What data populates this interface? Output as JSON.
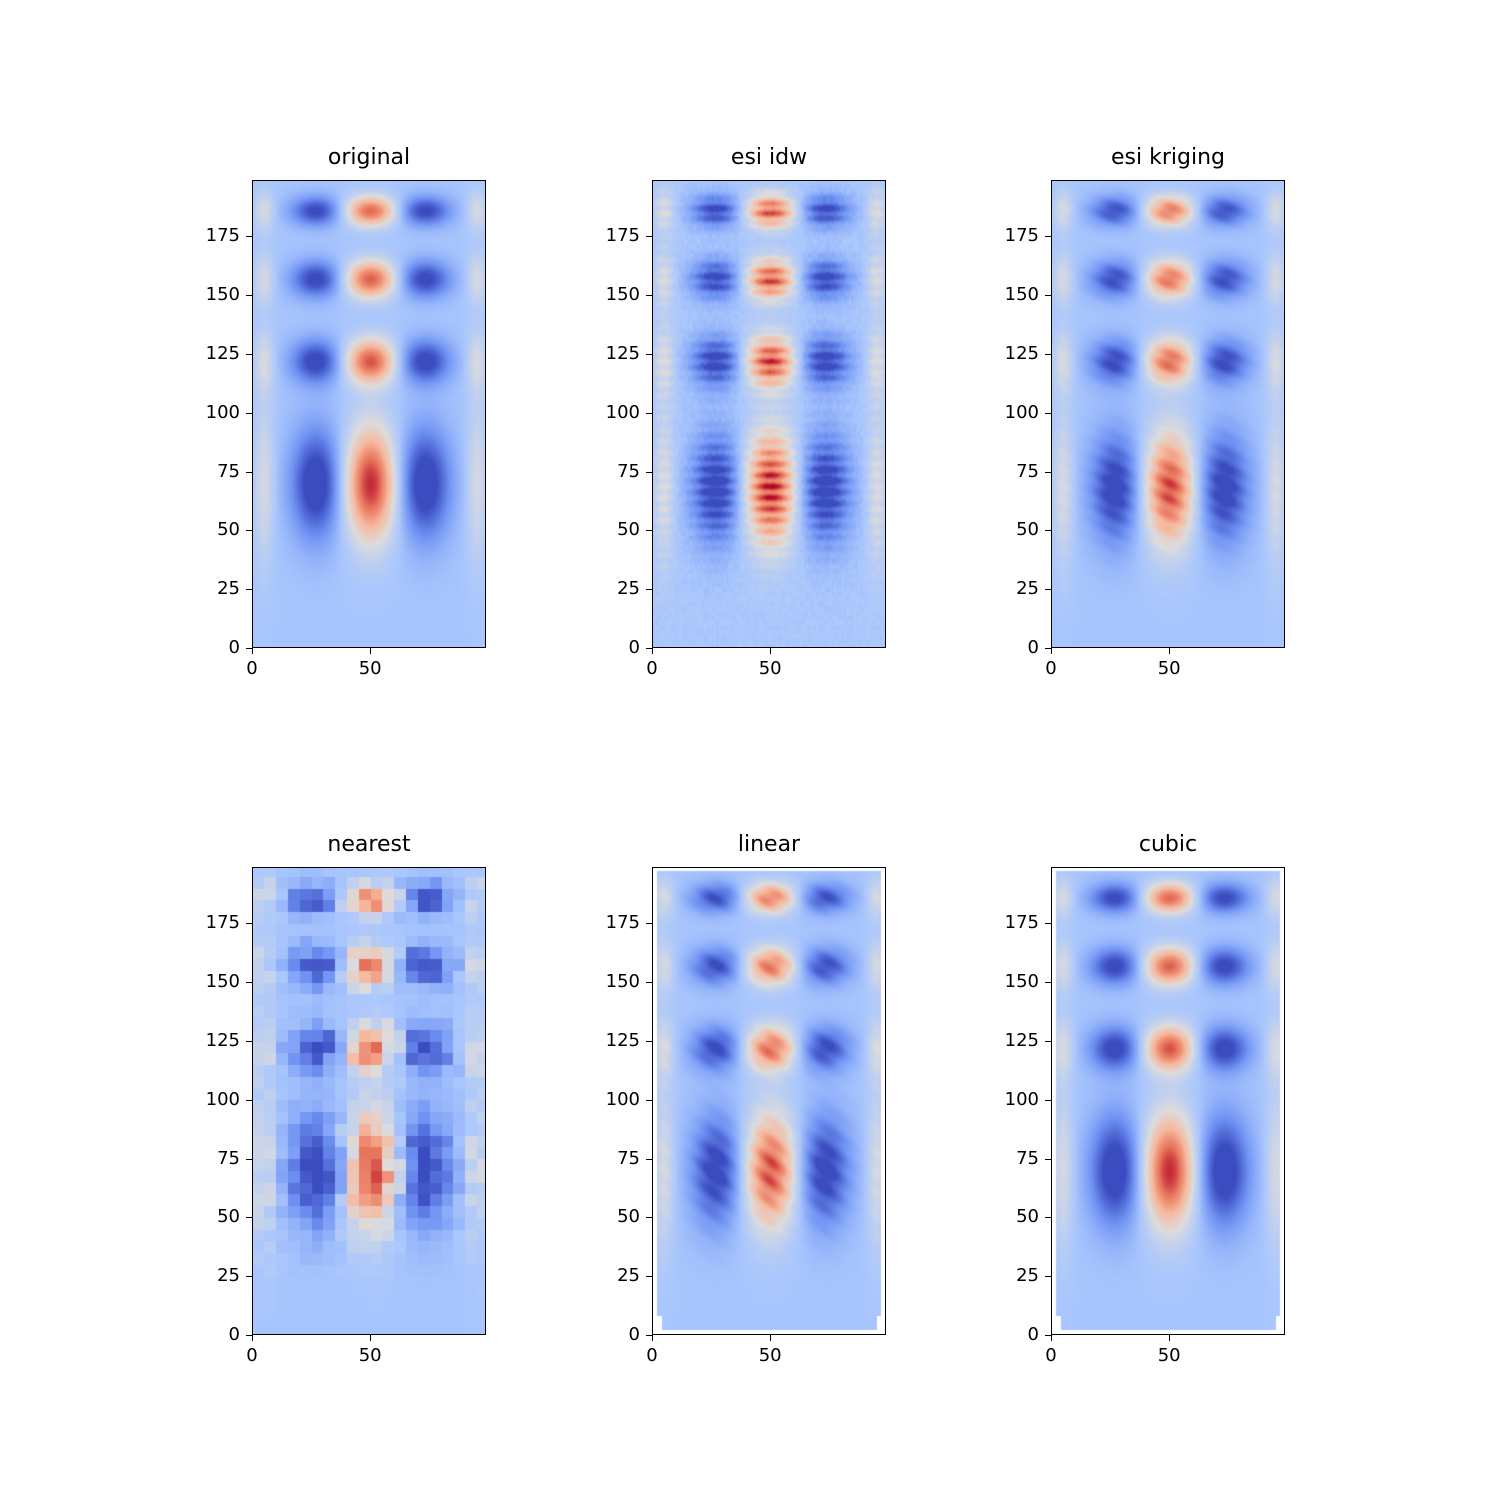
{
  "colormap": "coolwarm",
  "colormap_stops": [
    "#3b4cc0",
    "#6f92f3",
    "#aac7fd",
    "#dddcdc",
    "#f7b89c",
    "#e7745b",
    "#b40426"
  ],
  "chart_data": [
    {
      "type": "heatmap",
      "title": "original",
      "method": "original",
      "xlim": [
        0,
        99
      ],
      "ylim": [
        0,
        199
      ],
      "xticks": [
        "0",
        "50"
      ],
      "yticks": [
        "0",
        "25",
        "50",
        "75",
        "100",
        "125",
        "150",
        "175"
      ],
      "pattern": {
        "columns_x": [
          27,
          50,
          73
        ],
        "column_signs": [
          -1,
          1,
          -1
        ],
        "row_blobs": [
          {
            "y_center": 70,
            "y_span": 30
          },
          {
            "y_center": 122,
            "y_span": 12
          },
          {
            "y_center": 157,
            "y_span": 10
          },
          {
            "y_center": 186,
            "y_span": 8
          }
        ],
        "amplitude": 1.0,
        "background": -0.35
      }
    },
    {
      "type": "heatmap",
      "title": "esi idw",
      "method": "esi_idw",
      "xlim": [
        0,
        99
      ],
      "ylim": [
        0,
        199
      ],
      "xticks": [
        "0",
        "50"
      ],
      "yticks": [
        "0",
        "25",
        "50",
        "75",
        "100",
        "125",
        "150",
        "175"
      ],
      "pattern": {
        "columns_x": [
          27,
          50,
          73
        ],
        "column_signs": [
          -1,
          1,
          -1
        ],
        "row_blobs": [
          {
            "y_center": 68,
            "y_span": 30
          },
          {
            "y_center": 122,
            "y_span": 14
          },
          {
            "y_center": 157,
            "y_span": 11
          },
          {
            "y_center": 186,
            "y_span": 9
          }
        ],
        "amplitude": 0.95,
        "background": -0.33
      }
    },
    {
      "type": "heatmap",
      "title": "esi kriging",
      "method": "esi_kriging",
      "xlim": [
        0,
        99
      ],
      "ylim": [
        0,
        199
      ],
      "xticks": [
        "0",
        "50"
      ],
      "yticks": [
        "0",
        "25",
        "50",
        "75",
        "100",
        "125",
        "150",
        "175"
      ],
      "pattern": {
        "columns_x": [
          27,
          50,
          73
        ],
        "column_signs": [
          -1,
          1,
          -1
        ],
        "row_blobs": [
          {
            "y_center": 68,
            "y_span": 30
          },
          {
            "y_center": 122,
            "y_span": 12
          },
          {
            "y_center": 157,
            "y_span": 10
          },
          {
            "y_center": 186,
            "y_span": 8
          }
        ],
        "amplitude": 0.92,
        "background": -0.35
      }
    },
    {
      "type": "heatmap",
      "title": "nearest",
      "method": "nearest",
      "xlim": [
        0,
        99
      ],
      "ylim": [
        0,
        199
      ],
      "xticks": [
        "0",
        "50"
      ],
      "yticks": [
        "0",
        "25",
        "50",
        "75",
        "100",
        "125",
        "150",
        "175"
      ],
      "pattern": {
        "columns_x": [
          27,
          50,
          73
        ],
        "column_signs": [
          -1,
          1,
          -1
        ],
        "row_blobs": [
          {
            "y_center": 70,
            "y_span": 30
          },
          {
            "y_center": 122,
            "y_span": 12
          },
          {
            "y_center": 157,
            "y_span": 10
          },
          {
            "y_center": 186,
            "y_span": 8
          }
        ],
        "amplitude": 0.95,
        "background": -0.35
      }
    },
    {
      "type": "heatmap",
      "title": "linear",
      "method": "linear",
      "xlim": [
        0,
        99
      ],
      "ylim": [
        0,
        199
      ],
      "xticks": [
        "0",
        "50"
      ],
      "yticks": [
        "0",
        "25",
        "50",
        "75",
        "100",
        "125",
        "150",
        "175"
      ],
      "pattern": {
        "columns_x": [
          27,
          50,
          73
        ],
        "column_signs": [
          -1,
          1,
          -1
        ],
        "row_blobs": [
          {
            "y_center": 70,
            "y_span": 30
          },
          {
            "y_center": 122,
            "y_span": 12
          },
          {
            "y_center": 157,
            "y_span": 10
          },
          {
            "y_center": 186,
            "y_span": 8
          }
        ],
        "amplitude": 0.9,
        "background": -0.35,
        "masked_border": true
      }
    },
    {
      "type": "heatmap",
      "title": "cubic",
      "method": "cubic",
      "xlim": [
        0,
        99
      ],
      "ylim": [
        0,
        199
      ],
      "xticks": [
        "0",
        "50"
      ],
      "yticks": [
        "0",
        "25",
        "50",
        "75",
        "100",
        "125",
        "150",
        "175"
      ],
      "pattern": {
        "columns_x": [
          27,
          50,
          73
        ],
        "column_signs": [
          -1,
          1,
          -1
        ],
        "row_blobs": [
          {
            "y_center": 70,
            "y_span": 30
          },
          {
            "y_center": 122,
            "y_span": 12
          },
          {
            "y_center": 157,
            "y_span": 10
          },
          {
            "y_center": 186,
            "y_span": 8
          }
        ],
        "amplitude": 1.0,
        "background": -0.35,
        "masked_border": true
      }
    }
  ]
}
